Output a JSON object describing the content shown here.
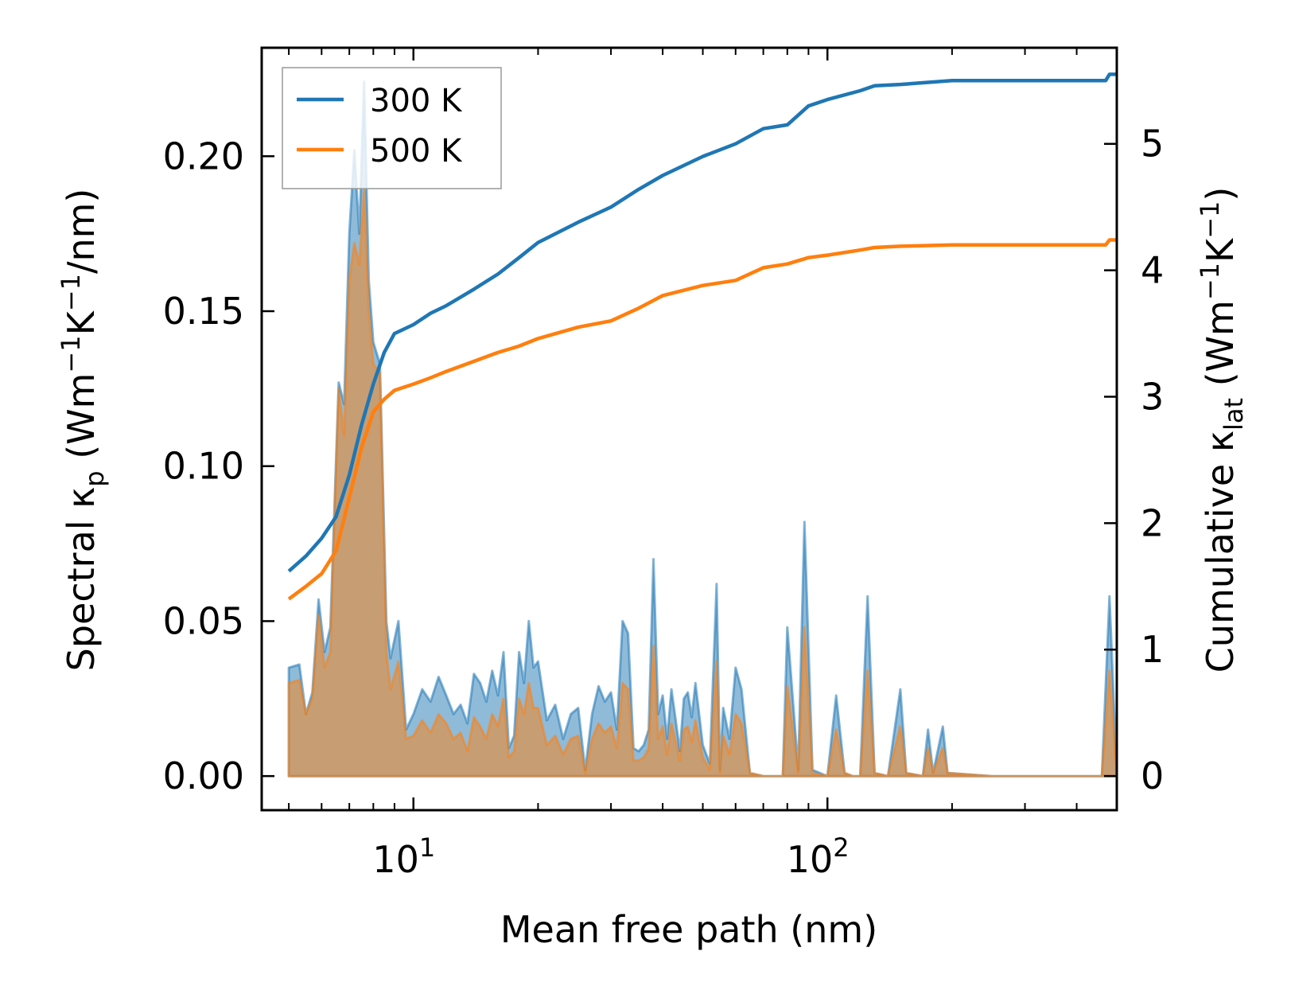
{
  "chart_data": {
    "type": "line",
    "xscale": "log",
    "xlabel": "Mean free path (nm)",
    "ylabel_left_parts": [
      "Spectral κ",
      "p",
      " (Wm",
      "−1",
      "K",
      "−1",
      "/nm)"
    ],
    "ylabel_right_parts": [
      "Cumulative κ",
      "lat",
      " (Wm",
      "−1",
      "K",
      "−1",
      ")"
    ],
    "xlim": [
      4.3,
      500
    ],
    "ylim_left": [
      -0.011,
      0.235
    ],
    "ylim_right": [
      -0.27,
      5.76
    ],
    "x_major_ticks": [
      {
        "value": 10,
        "base": "10",
        "exp": "1"
      },
      {
        "value": 100,
        "base": "10",
        "exp": "2"
      }
    ],
    "x_minor_ticks": [
      5,
      6,
      7,
      8,
      9,
      20,
      30,
      40,
      50,
      60,
      70,
      80,
      90,
      200,
      300,
      400
    ],
    "y_left_ticks": [
      {
        "value": 0.0,
        "label": "0.00"
      },
      {
        "value": 0.05,
        "label": "0.05"
      },
      {
        "value": 0.1,
        "label": "0.10"
      },
      {
        "value": 0.15,
        "label": "0.15"
      },
      {
        "value": 0.2,
        "label": "0.20"
      }
    ],
    "y_right_ticks": [
      {
        "value": 0,
        "label": "0"
      },
      {
        "value": 1,
        "label": "1"
      },
      {
        "value": 2,
        "label": "2"
      },
      {
        "value": 3,
        "label": "3"
      },
      {
        "value": 4,
        "label": "4"
      },
      {
        "value": 5,
        "label": "5"
      }
    ],
    "legend": {
      "position": "top-left",
      "entries": [
        "300 K",
        "500 K"
      ]
    },
    "series": [
      {
        "name": "300 K",
        "color": "#1f77b4",
        "cumulative_right_axis": [
          [
            5,
            1.62
          ],
          [
            5.5,
            1.74
          ],
          [
            6,
            1.88
          ],
          [
            6.5,
            2.05
          ],
          [
            7,
            2.38
          ],
          [
            7.5,
            2.78
          ],
          [
            8,
            3.1
          ],
          [
            8.5,
            3.35
          ],
          [
            9,
            3.5
          ],
          [
            10,
            3.57
          ],
          [
            11,
            3.66
          ],
          [
            12,
            3.72
          ],
          [
            14,
            3.85
          ],
          [
            16,
            3.97
          ],
          [
            18,
            4.1
          ],
          [
            20,
            4.22
          ],
          [
            25,
            4.38
          ],
          [
            30,
            4.5
          ],
          [
            35,
            4.64
          ],
          [
            40,
            4.75
          ],
          [
            50,
            4.9
          ],
          [
            60,
            5.0
          ],
          [
            70,
            5.12
          ],
          [
            80,
            5.15
          ],
          [
            90,
            5.3
          ],
          [
            100,
            5.35
          ],
          [
            120,
            5.42
          ],
          [
            130,
            5.46
          ],
          [
            150,
            5.47
          ],
          [
            200,
            5.5
          ],
          [
            300,
            5.5
          ],
          [
            470,
            5.5
          ],
          [
            480,
            5.55
          ],
          [
            500,
            5.55
          ]
        ],
        "spectral_left_axis": [
          [
            5,
            0.035
          ],
          [
            5.3,
            0.036
          ],
          [
            5.5,
            0.02
          ],
          [
            5.7,
            0.027
          ],
          [
            5.9,
            0.057
          ],
          [
            6.1,
            0.04
          ],
          [
            6.3,
            0.048
          ],
          [
            6.6,
            0.127
          ],
          [
            6.8,
            0.12
          ],
          [
            7.0,
            0.175
          ],
          [
            7.2,
            0.202
          ],
          [
            7.4,
            0.175
          ],
          [
            7.6,
            0.224
          ],
          [
            7.8,
            0.16
          ],
          [
            8.0,
            0.14
          ],
          [
            8.3,
            0.133
          ],
          [
            8.6,
            0.05
          ],
          [
            8.8,
            0.038
          ],
          [
            9.2,
            0.05
          ],
          [
            9.6,
            0.015
          ],
          [
            10,
            0.02
          ],
          [
            10.5,
            0.028
          ],
          [
            11,
            0.024
          ],
          [
            11.5,
            0.032
          ],
          [
            12,
            0.026
          ],
          [
            12.5,
            0.02
          ],
          [
            13,
            0.023
          ],
          [
            13.5,
            0.017
          ],
          [
            14,
            0.033
          ],
          [
            14.5,
            0.03
          ],
          [
            15,
            0.024
          ],
          [
            15.5,
            0.034
          ],
          [
            16,
            0.026
          ],
          [
            16.5,
            0.04
          ],
          [
            17,
            0.009
          ],
          [
            17.5,
            0.013
          ],
          [
            18,
            0.04
          ],
          [
            18.5,
            0.03
          ],
          [
            19,
            0.05
          ],
          [
            19.5,
            0.035
          ],
          [
            20,
            0.037
          ],
          [
            21,
            0.018
          ],
          [
            22,
            0.023
          ],
          [
            23,
            0.012
          ],
          [
            24,
            0.02
          ],
          [
            25,
            0.022
          ],
          [
            26,
            0.002
          ],
          [
            27,
            0.02
          ],
          [
            28,
            0.029
          ],
          [
            29,
            0.024
          ],
          [
            30,
            0.027
          ],
          [
            31,
            0.015
          ],
          [
            32,
            0.05
          ],
          [
            33,
            0.046
          ],
          [
            34,
            0.009
          ],
          [
            35,
            0.008
          ],
          [
            36,
            0.01
          ],
          [
            37,
            0.015
          ],
          [
            38,
            0.07
          ],
          [
            39,
            0.02
          ],
          [
            40,
            0.026
          ],
          [
            41,
            0.012
          ],
          [
            42,
            0.028
          ],
          [
            43,
            0.018
          ],
          [
            44,
            0.008
          ],
          [
            45,
            0.025
          ],
          [
            46,
            0.027
          ],
          [
            47,
            0.019
          ],
          [
            48,
            0.03
          ],
          [
            50,
            0.01
          ],
          [
            52,
            0.004
          ],
          [
            54,
            0.062
          ],
          [
            55,
            0.002
          ],
          [
            56,
            0.022
          ],
          [
            58,
            0.012
          ],
          [
            60,
            0.035
          ],
          [
            62,
            0.028
          ],
          [
            65,
            0.001
          ],
          [
            70,
            0.0
          ],
          [
            78,
            0.0
          ],
          [
            80,
            0.048
          ],
          [
            85,
            0.002
          ],
          [
            88,
            0.082
          ],
          [
            92,
            0.002
          ],
          [
            100,
            0.0
          ],
          [
            105,
            0.026
          ],
          [
            110,
            0.001
          ],
          [
            115,
            0.0
          ],
          [
            120,
            0.0
          ],
          [
            125,
            0.058
          ],
          [
            130,
            0.001
          ],
          [
            140,
            0.0
          ],
          [
            150,
            0.028
          ],
          [
            155,
            0.001
          ],
          [
            170,
            0.0
          ],
          [
            175,
            0.015
          ],
          [
            180,
            0.001
          ],
          [
            190,
            0.016
          ],
          [
            195,
            0.001
          ],
          [
            250,
            0.0
          ],
          [
            460,
            0.0
          ],
          [
            480,
            0.058
          ],
          [
            500,
            0.0
          ]
        ]
      },
      {
        "name": "500 K",
        "color": "#ff7f0e",
        "cumulative_right_axis": [
          [
            5,
            1.4
          ],
          [
            5.5,
            1.5
          ],
          [
            6,
            1.6
          ],
          [
            6.5,
            1.78
          ],
          [
            7,
            2.2
          ],
          [
            7.5,
            2.6
          ],
          [
            8,
            2.88
          ],
          [
            8.5,
            2.98
          ],
          [
            9,
            3.05
          ],
          [
            10,
            3.1
          ],
          [
            11,
            3.15
          ],
          [
            12,
            3.2
          ],
          [
            14,
            3.28
          ],
          [
            16,
            3.35
          ],
          [
            18,
            3.4
          ],
          [
            20,
            3.46
          ],
          [
            25,
            3.55
          ],
          [
            30,
            3.6
          ],
          [
            35,
            3.7
          ],
          [
            40,
            3.8
          ],
          [
            50,
            3.88
          ],
          [
            60,
            3.92
          ],
          [
            70,
            4.02
          ],
          [
            80,
            4.05
          ],
          [
            90,
            4.1
          ],
          [
            100,
            4.12
          ],
          [
            120,
            4.16
          ],
          [
            130,
            4.18
          ],
          [
            150,
            4.19
          ],
          [
            200,
            4.2
          ],
          [
            300,
            4.2
          ],
          [
            470,
            4.2
          ],
          [
            480,
            4.24
          ],
          [
            500,
            4.24
          ]
        ],
        "spectral_left_axis": [
          [
            5,
            0.03
          ],
          [
            5.3,
            0.031
          ],
          [
            5.5,
            0.02
          ],
          [
            5.7,
            0.025
          ],
          [
            5.9,
            0.052
          ],
          [
            6.1,
            0.035
          ],
          [
            6.3,
            0.04
          ],
          [
            6.6,
            0.125
          ],
          [
            6.8,
            0.11
          ],
          [
            7.0,
            0.16
          ],
          [
            7.2,
            0.172
          ],
          [
            7.4,
            0.165
          ],
          [
            7.6,
            0.189
          ],
          [
            7.8,
            0.15
          ],
          [
            8.0,
            0.133
          ],
          [
            8.3,
            0.13
          ],
          [
            8.6,
            0.04
          ],
          [
            8.8,
            0.028
          ],
          [
            9.2,
            0.037
          ],
          [
            9.6,
            0.012
          ],
          [
            10,
            0.013
          ],
          [
            10.5,
            0.018
          ],
          [
            11,
            0.014
          ],
          [
            11.5,
            0.02
          ],
          [
            12,
            0.017
          ],
          [
            12.5,
            0.012
          ],
          [
            13,
            0.014
          ],
          [
            13.5,
            0.008
          ],
          [
            14,
            0.019
          ],
          [
            14.5,
            0.016
          ],
          [
            15,
            0.012
          ],
          [
            15.5,
            0.02
          ],
          [
            16,
            0.016
          ],
          [
            16.5,
            0.025
          ],
          [
            17,
            0.006
          ],
          [
            17.5,
            0.008
          ],
          [
            18,
            0.025
          ],
          [
            18.5,
            0.02
          ],
          [
            19,
            0.03
          ],
          [
            19.5,
            0.022
          ],
          [
            20,
            0.022
          ],
          [
            21,
            0.01
          ],
          [
            22,
            0.013
          ],
          [
            23,
            0.007
          ],
          [
            24,
            0.012
          ],
          [
            25,
            0.013
          ],
          [
            26,
            0.001
          ],
          [
            27,
            0.012
          ],
          [
            28,
            0.017
          ],
          [
            29,
            0.014
          ],
          [
            30,
            0.016
          ],
          [
            31,
            0.009
          ],
          [
            32,
            0.03
          ],
          [
            33,
            0.028
          ],
          [
            34,
            0.005
          ],
          [
            35,
            0.005
          ],
          [
            36,
            0.006
          ],
          [
            37,
            0.009
          ],
          [
            38,
            0.042
          ],
          [
            39,
            0.012
          ],
          [
            40,
            0.016
          ],
          [
            41,
            0.007
          ],
          [
            42,
            0.017
          ],
          [
            43,
            0.011
          ],
          [
            44,
            0.005
          ],
          [
            45,
            0.015
          ],
          [
            46,
            0.016
          ],
          [
            47,
            0.011
          ],
          [
            48,
            0.018
          ],
          [
            50,
            0.006
          ],
          [
            52,
            0.002
          ],
          [
            54,
            0.037
          ],
          [
            55,
            0.001
          ],
          [
            56,
            0.013
          ],
          [
            58,
            0.007
          ],
          [
            60,
            0.02
          ],
          [
            62,
            0.017
          ],
          [
            65,
            0.001
          ],
          [
            70,
            0.0
          ],
          [
            78,
            0.0
          ],
          [
            80,
            0.029
          ],
          [
            85,
            0.001
          ],
          [
            88,
            0.048
          ],
          [
            92,
            0.001
          ],
          [
            100,
            0.0
          ],
          [
            105,
            0.015
          ],
          [
            110,
            0.001
          ],
          [
            115,
            0.0
          ],
          [
            120,
            0.0
          ],
          [
            125,
            0.034
          ],
          [
            130,
            0.001
          ],
          [
            140,
            0.0
          ],
          [
            150,
            0.016
          ],
          [
            155,
            0.001
          ],
          [
            170,
            0.0
          ],
          [
            175,
            0.009
          ],
          [
            180,
            0.001
          ],
          [
            190,
            0.009
          ],
          [
            195,
            0.001
          ],
          [
            250,
            0.0
          ],
          [
            460,
            0.0
          ],
          [
            480,
            0.034
          ],
          [
            500,
            0.0
          ]
        ]
      }
    ]
  }
}
